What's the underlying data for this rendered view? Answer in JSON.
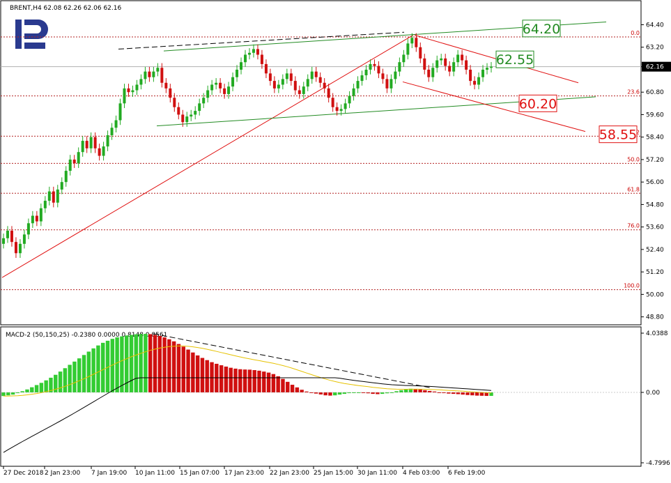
{
  "chart_data": [
    {
      "type": "candlestick",
      "symbol_header": "BRENT,H4  62.08 62.26 62.06 62.16",
      "current_price": 62.16,
      "y_ticks": [
        64.4,
        63.2,
        62.16,
        60.8,
        59.6,
        58.4,
        57.2,
        56.0,
        54.8,
        53.6,
        52.4,
        51.2,
        50.0,
        48.8
      ],
      "y_tick_labels": [
        "64.40",
        "63.20",
        "62.16",
        "60.80",
        "59.60",
        "58.40",
        "57.20",
        "56.00",
        "54.80",
        "53.60",
        "52.40",
        "51.20",
        "50.00",
        "48.80"
      ],
      "ylim": [
        48.6,
        65.2
      ],
      "x_labels": [
        "27 Dec 2018",
        "2 Jan 23:00",
        "7 Jan 19:00",
        "10 Jan 11:00",
        "15 Jan 07:00",
        "17 Jan 23:00",
        "22 Jan 23:00",
        "25 Jan 15:00",
        "30 Jan 11:00",
        "4 Feb 03:00",
        "6 Feb 19:00"
      ],
      "fibonacci_levels": [
        {
          "label": "0.0",
          "value": 63.75
        },
        {
          "label": "23.6",
          "value": 60.6
        },
        {
          "label": "38.2",
          "value": 58.45
        },
        {
          "label": "50.0",
          "value": 57.0
        },
        {
          "label": "61.8",
          "value": 55.4
        },
        {
          "label": "76.0",
          "value": 53.45
        },
        {
          "label": "100.0",
          "value": 50.25
        }
      ],
      "annotations": [
        {
          "text": "64.20",
          "value": 64.2,
          "color": "#228b22"
        },
        {
          "text": "62.55",
          "value": 62.55,
          "color": "#228b22"
        },
        {
          "text": "60.20",
          "value": 60.2,
          "color": "#e01010"
        },
        {
          "text": "58.55",
          "value": 58.55,
          "color": "#e01010"
        }
      ],
      "closes": [
        53.0,
        53.4,
        52.8,
        52.2,
        52.7,
        53.2,
        53.8,
        54.2,
        53.9,
        54.6,
        55.0,
        55.5,
        54.9,
        55.6,
        56.0,
        56.6,
        57.2,
        57.0,
        57.6,
        58.2,
        57.8,
        58.4,
        57.8,
        57.4,
        57.9,
        58.5,
        58.9,
        59.3,
        60.2,
        61.0,
        60.8,
        60.9,
        61.2,
        61.5,
        61.9,
        61.6,
        61.9,
        62.1,
        61.3,
        61.0,
        60.5,
        60.0,
        59.6,
        59.2,
        59.5,
        59.6,
        59.8,
        60.2,
        60.5,
        60.9,
        61.2,
        61.3,
        61.0,
        60.7,
        61.1,
        61.6,
        62.0,
        62.4,
        62.8,
        62.9,
        63.1,
        62.8,
        62.3,
        61.8,
        61.4,
        61.0,
        61.2,
        61.5,
        61.8,
        61.4,
        60.9,
        60.7,
        61.1,
        61.5,
        61.9,
        61.6,
        61.3,
        61.0,
        60.5,
        60.0,
        59.8,
        59.9,
        60.2,
        60.6,
        61.0,
        61.4,
        61.7,
        62.0,
        62.3,
        62.2,
        61.8,
        61.5,
        61.0,
        61.5,
        61.9,
        62.4,
        62.8,
        63.4,
        63.7,
        63.2,
        62.6,
        62.0,
        61.6,
        62.1,
        62.5,
        62.6,
        62.2,
        61.9,
        62.4,
        62.8,
        62.5,
        62.0,
        61.4,
        61.2,
        61.6,
        62.0,
        62.1,
        62.16
      ],
      "macd": {
        "label": "MACD-2 (50,150,25) -0.2380 0.0000 0.8148 0.8561",
        "values": [
          -0.25,
          -0.2,
          -0.15,
          -0.05,
          0.08,
          0.2,
          0.35,
          0.5,
          0.65,
          0.82,
          1.0,
          1.2,
          1.42,
          1.65,
          1.88,
          2.1,
          2.32,
          2.55,
          2.78,
          3.0,
          3.2,
          3.38,
          3.52,
          3.65,
          3.75,
          3.82,
          3.88,
          3.92,
          3.96,
          3.98,
          3.99,
          3.97,
          3.92,
          3.85,
          3.75,
          3.62,
          3.48,
          3.3,
          3.12,
          2.92,
          2.72,
          2.52,
          2.35,
          2.2,
          2.06,
          1.95,
          1.85,
          1.76,
          1.68,
          1.62,
          1.58,
          1.56,
          1.55,
          1.52,
          1.48,
          1.42,
          1.35,
          1.25,
          1.1,
          0.92,
          0.72,
          0.52,
          0.34,
          0.18,
          0.06,
          -0.02,
          -0.08,
          -0.14,
          -0.2,
          -0.22,
          -0.2,
          -0.15,
          -0.1,
          -0.05,
          -0.03,
          -0.02,
          -0.03,
          -0.06,
          -0.1,
          -0.12,
          -0.1,
          -0.06,
          0.0,
          0.08,
          0.15,
          0.22,
          0.25,
          0.24,
          0.2,
          0.15,
          0.1,
          0.06,
          0.0,
          -0.05,
          -0.08,
          -0.1,
          -0.12,
          -0.15,
          -0.18,
          -0.2,
          -0.22,
          -0.23,
          -0.24,
          -0.238
        ],
        "y_ticks": [
          4.0388,
          0.0,
          -4.7996
        ],
        "y_tick_labels": [
          "4.0388",
          "0.00",
          "-4.7996"
        ],
        "ylim": [
          -4.7996,
          4.0388
        ]
      }
    }
  ]
}
